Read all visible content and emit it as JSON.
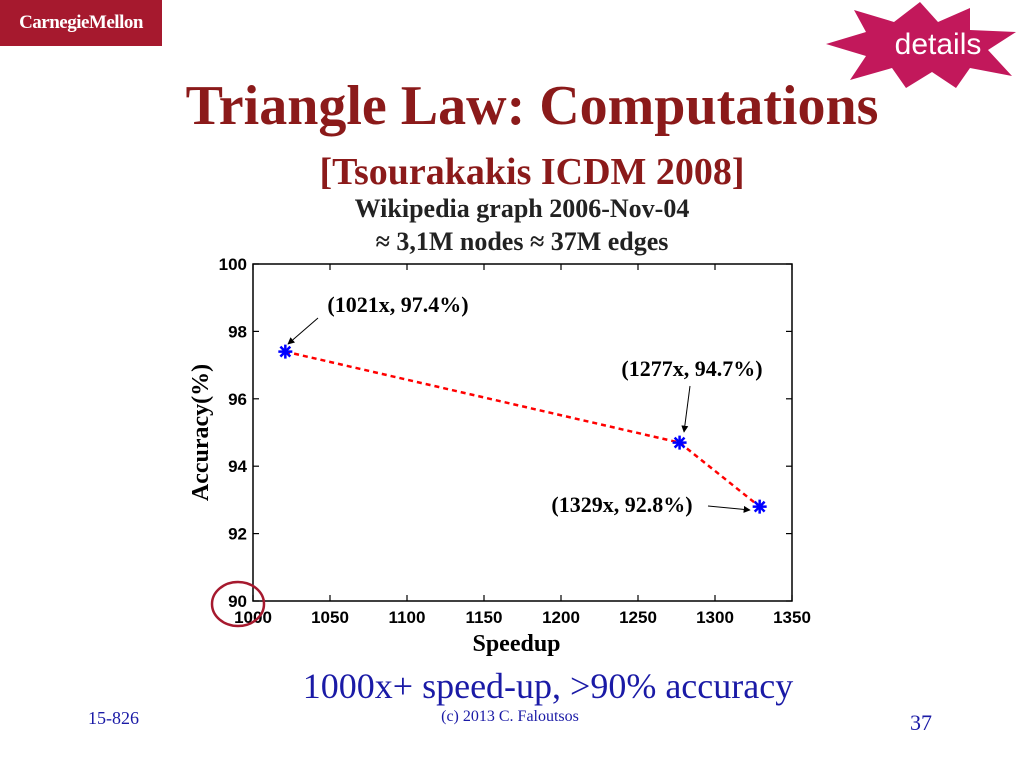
{
  "header": {
    "logo_text": "CarnegieMellon",
    "badge_text": "details",
    "title": "Triangle Law: Computations",
    "subtitle": "[Tsourakakis ICDM 2008]"
  },
  "chart_data": {
    "type": "line",
    "title_lines": [
      "Wikipedia graph 2006-Nov-04",
      "≈ 3,1M nodes ≈ 37M edges"
    ],
    "xlabel": "Speedup",
    "ylabel": "Accuracy(%)",
    "xlim": [
      1000,
      1350
    ],
    "ylim": [
      90,
      100
    ],
    "xticks": [
      1000,
      1050,
      1100,
      1150,
      1200,
      1250,
      1300,
      1350
    ],
    "yticks": [
      90,
      92,
      94,
      96,
      98,
      100
    ],
    "grid": false,
    "series": [
      {
        "x": [
          1021,
          1277,
          1329
        ],
        "y": [
          97.4,
          94.7,
          92.8
        ],
        "color": "#ff0000",
        "marker_color": "#0000ff",
        "line_style": "dashed",
        "marker": "asterisk"
      }
    ],
    "annotations": [
      {
        "text": "(1021x, 97.4%)",
        "x": 1021,
        "y": 97.4
      },
      {
        "text": "(1277x, 94.7%)",
        "x": 1277,
        "y": 94.7
      },
      {
        "text": "(1329x, 92.8%)",
        "x": 1329,
        "y": 92.8
      }
    ],
    "highlight": {
      "label": "90",
      "color": "#a6192e"
    }
  },
  "caption": "1000x+ speed-up, >90% accuracy",
  "footer": {
    "course": "15-826",
    "copyright": "(c) 2013  C. Faloutsos",
    "page": "37"
  }
}
